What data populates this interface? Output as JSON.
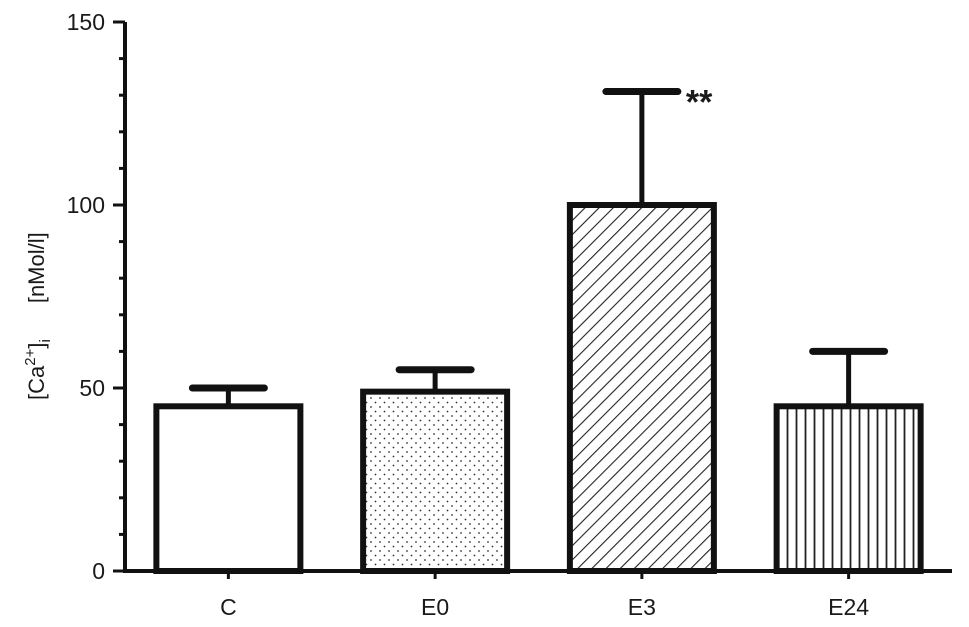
{
  "chart_data": {
    "type": "bar",
    "categories": [
      "C",
      "E0",
      "E3",
      "E24"
    ],
    "values": [
      45,
      49,
      100,
      45
    ],
    "errors": [
      5,
      6,
      31,
      15
    ],
    "fills": [
      "solid-white",
      "dotted",
      "diagonal-hatch",
      "vertical-stripes"
    ],
    "ylim": [
      0,
      150
    ],
    "yticks": [
      "0",
      "50",
      "100",
      "150"
    ],
    "ylabel": {
      "base": "[Ca",
      "sup": "2+",
      "close": "]",
      "sub": "i",
      "unit": "[nMol/l]"
    },
    "annotation": {
      "category": "E3",
      "text": "**"
    },
    "grid": false,
    "colors": {
      "stroke": "#111111",
      "fill": "#ffffff"
    }
  }
}
